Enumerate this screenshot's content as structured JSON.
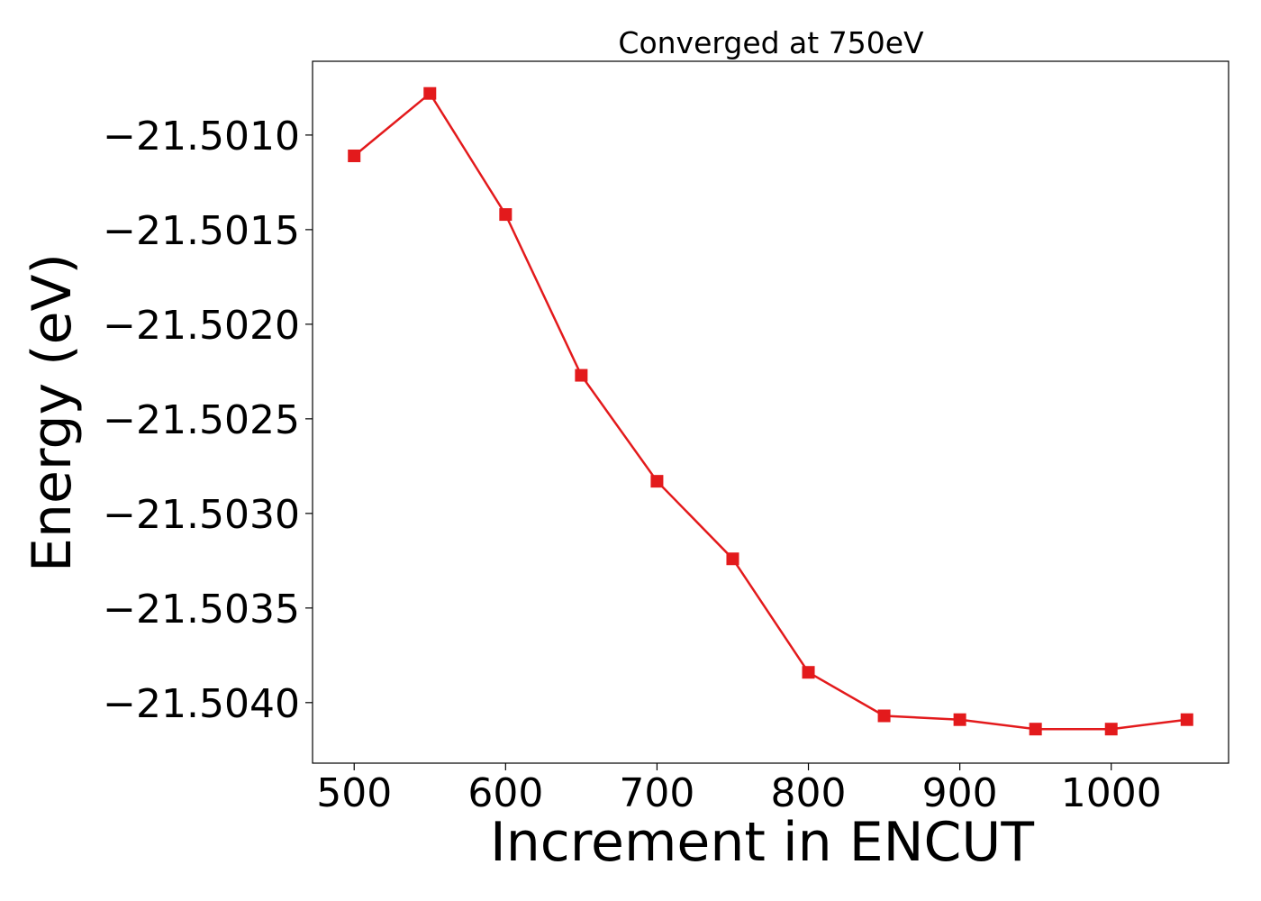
{
  "chart_data": {
    "type": "line",
    "title": "Converged at 750eV",
    "xlabel": "Increment in ENCUT",
    "ylabel": "Energy (eV)",
    "x": [
      500,
      550,
      600,
      650,
      700,
      750,
      800,
      850,
      900,
      950,
      1000,
      1050
    ],
    "series": [
      {
        "values": [
          -21.50111,
          -21.50078,
          -21.50142,
          -21.50227,
          -21.50283,
          -21.50324,
          -21.50384,
          -21.50407,
          -21.50409,
          -21.50414,
          -21.50414,
          -21.50409
        ],
        "color": "#e31a1c",
        "marker": "square"
      }
    ],
    "xlim": [
      472.5,
      1077.5
    ],
    "ylim": [
      -21.50432,
      -21.50061
    ],
    "xticks": [
      500,
      600,
      700,
      800,
      900,
      1000
    ],
    "xtick_labels": [
      "500",
      "600",
      "700",
      "800",
      "900",
      "1000"
    ],
    "yticks": [
      -21.501,
      -21.5015,
      -21.502,
      -21.5025,
      -21.503,
      -21.5035,
      -21.504
    ],
    "ytick_labels": [
      "−21.5010",
      "−21.5015",
      "−21.5020",
      "−21.5025",
      "−21.5030",
      "−21.5035",
      "−21.5040"
    ],
    "grid": false,
    "legend": "none"
  }
}
